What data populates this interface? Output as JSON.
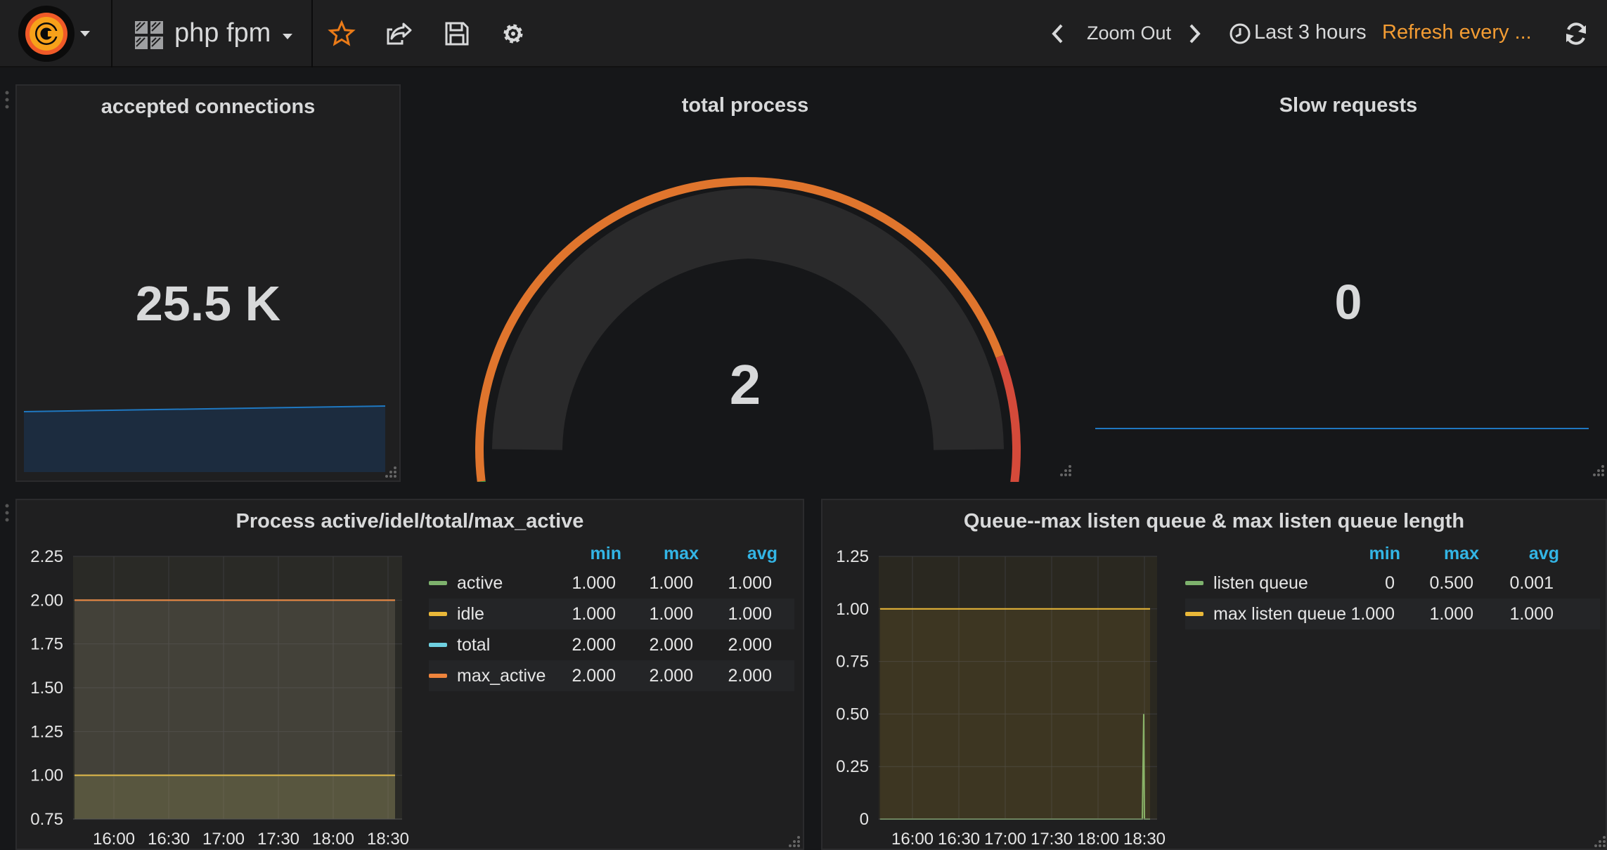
{
  "navbar": {
    "dashboard_title": "php fpm",
    "zoom_out_label": "Zoom Out",
    "time_range_label": "Last 3 hours",
    "refresh_label": "Refresh every ...",
    "icons": {
      "logo": "grafana-logo-icon",
      "dashboards": "grid-icon",
      "star": "star-icon",
      "share": "share-icon",
      "save": "save-icon",
      "settings": "gear-icon",
      "prev": "chevron-left-icon",
      "next": "chevron-right-icon",
      "clock": "clock-icon",
      "refresh": "refresh-icon"
    }
  },
  "panels": {
    "accepted": {
      "title": "accepted connections",
      "value": "25.5 K",
      "sparkline_color": "#1f78c1",
      "sparkline_fill": "#1c2c3f"
    },
    "total_process": {
      "title": "total process",
      "value": "2",
      "gauge_min": 0,
      "gauge_max": 3,
      "gauge_value": 2,
      "threshold_colors": [
        "#299c46",
        "#e0752d",
        "#d44a3a"
      ]
    },
    "slow": {
      "title": "Slow requests",
      "value": "0",
      "sparkline_color": "#1f78c1"
    },
    "process_graph": {
      "title": "Process active/idel/total/max_active",
      "legend_headers": {
        "min": "min",
        "max": "max",
        "avg": "avg"
      },
      "legend": [
        {
          "name": "active",
          "min": "1.000",
          "max": "1.000",
          "avg": "1.000",
          "color": "#7eb26d"
        },
        {
          "name": "idle",
          "min": "1.000",
          "max": "1.000",
          "avg": "1.000",
          "color": "#eab839"
        },
        {
          "name": "total",
          "min": "2.000",
          "max": "2.000",
          "avg": "2.000",
          "color": "#6ed0e0"
        },
        {
          "name": "max_active",
          "min": "2.000",
          "max": "2.000",
          "avg": "2.000",
          "color": "#ef843c"
        }
      ]
    },
    "queue_graph": {
      "title": "Queue--max listen queue & max listen queue length",
      "legend_headers": {
        "min": "min",
        "max": "max",
        "avg": "avg"
      },
      "legend": [
        {
          "name": "listen queue",
          "min": "0",
          "max": "0.500",
          "avg": "0.001",
          "color": "#7eb26d"
        },
        {
          "name": "max listen queue",
          "min": "1.000",
          "max": "1.000",
          "avg": "1.000",
          "color": "#eab839"
        }
      ]
    }
  },
  "chart_data": [
    {
      "type": "line",
      "title": "Process active/idel/total/max_active",
      "x": [
        "16:00",
        "16:30",
        "17:00",
        "17:30",
        "18:00",
        "18:30"
      ],
      "ylim": [
        0.75,
        2.25
      ],
      "yticks": [
        "2.25",
        "2.00",
        "1.75",
        "1.50",
        "1.25",
        "1.00",
        "0.75"
      ],
      "series": [
        {
          "name": "active",
          "values": [
            1,
            1,
            1,
            1,
            1,
            1
          ],
          "color": "#7eb26d"
        },
        {
          "name": "idle",
          "values": [
            1,
            1,
            1,
            1,
            1,
            1
          ],
          "color": "#eab839"
        },
        {
          "name": "total",
          "values": [
            2,
            2,
            2,
            2,
            2,
            2
          ],
          "color": "#6ed0e0"
        },
        {
          "name": "max_active",
          "values": [
            2,
            2,
            2,
            2,
            2,
            2
          ],
          "color": "#ef843c"
        }
      ]
    },
    {
      "type": "line",
      "title": "Queue--max listen queue & max listen queue length",
      "x": [
        "16:00",
        "16:30",
        "17:00",
        "17:30",
        "18:00",
        "18:30"
      ],
      "ylim": [
        0,
        1.25
      ],
      "yticks": [
        "1.25",
        "1.00",
        "0.75",
        "0.50",
        "0.25",
        "0"
      ],
      "series": [
        {
          "name": "listen queue",
          "values": [
            0,
            0,
            0,
            0,
            0,
            0.5
          ],
          "color": "#7eb26d"
        },
        {
          "name": "max listen queue",
          "values": [
            1,
            1,
            1,
            1,
            1,
            1
          ],
          "color": "#eab839"
        }
      ]
    }
  ]
}
